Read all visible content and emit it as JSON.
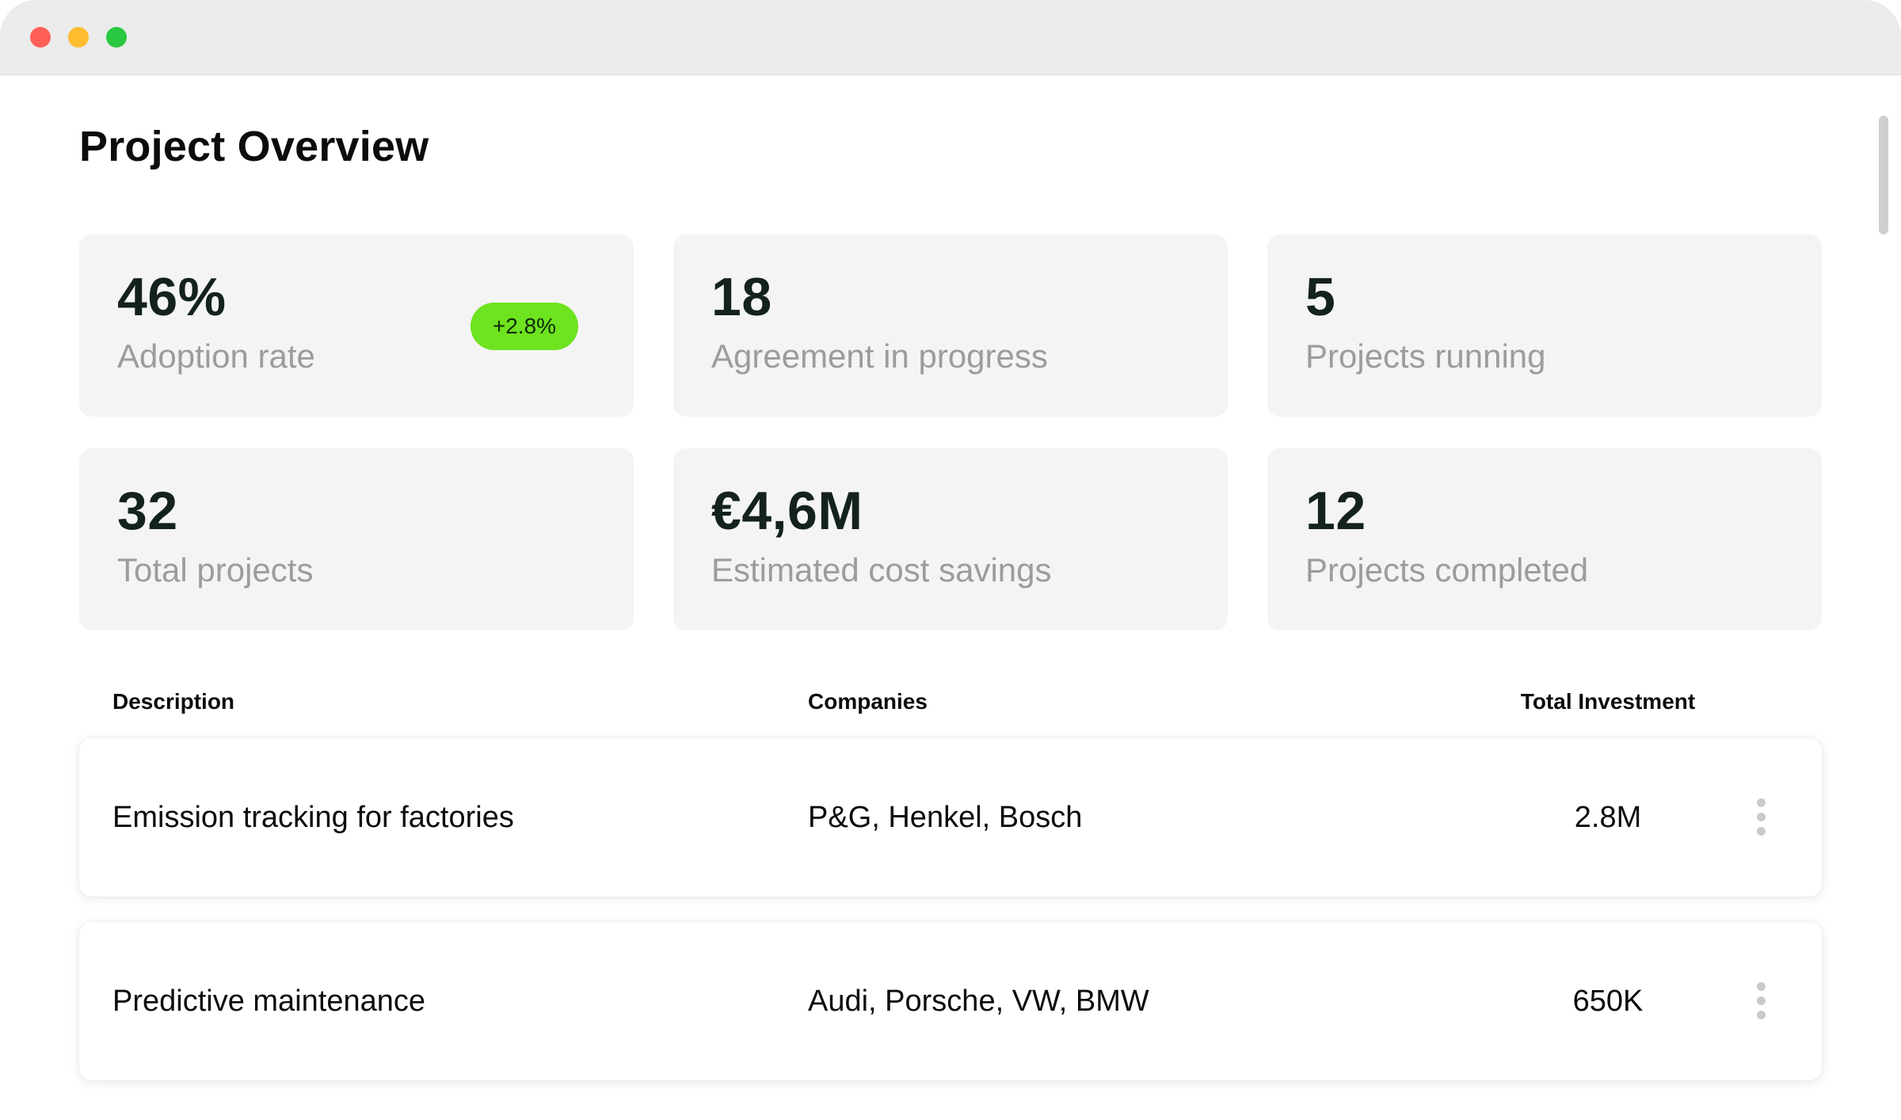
{
  "page": {
    "title": "Project Overview"
  },
  "stats": [
    {
      "value": "46%",
      "label": "Adoption rate",
      "badge": "+2.8%"
    },
    {
      "value": "18",
      "label": "Agreement in progress"
    },
    {
      "value": "5",
      "label": "Projects running"
    },
    {
      "value": "32",
      "label": "Total projects"
    },
    {
      "value": "€4,6M",
      "label": "Estimated cost savings"
    },
    {
      "value": "12",
      "label": "Projects completed"
    }
  ],
  "table": {
    "columns": [
      "Description",
      "Companies",
      "Total Investment"
    ],
    "rows": [
      {
        "description": "Emission tracking for factories",
        "companies": "P&G, Henkel, Bosch",
        "investment": "2.8M"
      },
      {
        "description": "Predictive maintenance",
        "companies": "Audi, Porsche, VW, BMW",
        "investment": "650K"
      }
    ]
  },
  "icons": {
    "row_menu": "more-vertical-icon"
  },
  "colors": {
    "badge_positive": "#6ee31f",
    "card_bg": "#f4f4f4",
    "value_text": "#13221b",
    "label_text": "#9c9c9c"
  }
}
